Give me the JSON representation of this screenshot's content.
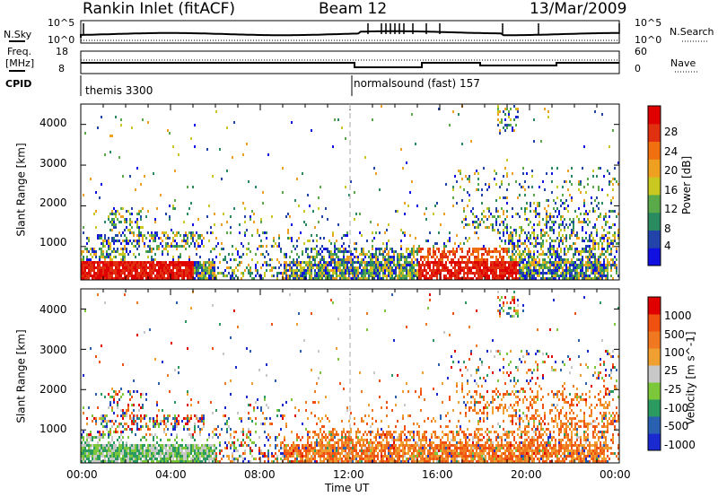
{
  "header": {
    "radar_title": "Rankin Inlet (fitACF)",
    "beam": "Beam 12",
    "date": "13/Mar/2009"
  },
  "panels": {
    "nsky_label": "N.Sky",
    "nsky_top": "10^5",
    "nsky_bottom": "10^0",
    "nsearch_top": "10^5",
    "nsearch_bottom": "10^0",
    "nsearch_label": "N.Search",
    "freq_label_1": "Freq.",
    "freq_label_2": "[MHz]",
    "freq_top": "18",
    "freq_bottom": "8",
    "nave_top": "60",
    "nave_bottom": "0",
    "nave_label": "Nave",
    "cpid_label": "CPID",
    "cpid_1": "themis 3300",
    "cpid_2": "normalsound (fast) 157"
  },
  "colors": {
    "power": [
      "#1010e0",
      "#2244aa",
      "#2a8a60",
      "#5aaa4a",
      "#c8c820",
      "#f0a020",
      "#f07010",
      "#e03010",
      "#e00000"
    ],
    "velocity": [
      "#e00000",
      "#f05010",
      "#f07820",
      "#f0a030",
      "#c8c8c8",
      "#7cc83a",
      "#2a9a60",
      "#2a60b0",
      "#1a2ad0"
    ]
  },
  "chart_data": [
    {
      "type": "heatmap",
      "name": "Power",
      "ylabel": "Slant Range [km]",
      "yticks": [
        "1000",
        "2000",
        "3000",
        "4000"
      ],
      "ylim": [
        180,
        4500
      ],
      "xlim": [
        0,
        24
      ],
      "colorbar_label": "Power [dB]",
      "colorbar_ticks": [
        "4",
        "8",
        "12",
        "16",
        "20",
        "24",
        "28"
      ],
      "colorbar_range": [
        0,
        32
      ]
    },
    {
      "type": "heatmap",
      "name": "Velocity",
      "ylabel": "Slant Range [km]",
      "yticks": [
        "1000",
        "2000",
        "3000",
        "4000"
      ],
      "ylim": [
        180,
        4500
      ],
      "xlim": [
        0,
        24
      ],
      "xticks": [
        "00:00",
        "04:00",
        "08:00",
        "12:00",
        "16:00",
        "20:00",
        "00:00"
      ],
      "xlabel": "Time UT",
      "colorbar_label": "Velocity [m s^-1]",
      "colorbar_ticks": [
        "1000",
        "500",
        "100",
        "25",
        "-25",
        "-100",
        "-500",
        "-1000"
      ]
    }
  ]
}
